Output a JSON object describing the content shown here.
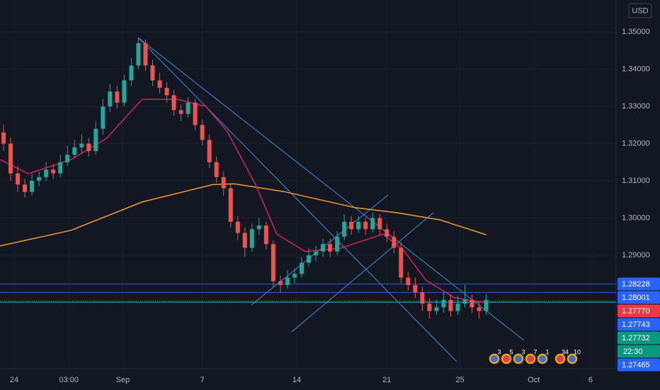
{
  "chart_data": {
    "type": "candlestick",
    "currency": "USD",
    "up_color": "#26a69a",
    "down_color": "#ef5350",
    "ylim": [
      1.2595,
      1.3586
    ],
    "yticks": [
      {
        "value": 1.29,
        "label": "1.29000"
      },
      {
        "value": 1.3,
        "label": "1.30000"
      },
      {
        "value": 1.31,
        "label": "1.31000"
      },
      {
        "value": 1.32,
        "label": "1.32000"
      },
      {
        "value": 1.33,
        "label": "1.33000"
      },
      {
        "value": 1.34,
        "label": "1.34000"
      },
      {
        "value": 1.35,
        "label": "1.35000"
      }
    ],
    "xlim": [
      -0.5,
      86.3
    ],
    "xticks": [
      {
        "value": 1.5,
        "label": "24"
      },
      {
        "value": 9.2,
        "label": "03:00"
      },
      {
        "value": 16.8,
        "label": "Sep"
      },
      {
        "value": 28,
        "label": "7"
      },
      {
        "value": 41.3,
        "label": "14"
      },
      {
        "value": 54,
        "label": "21"
      },
      {
        "value": 64.3,
        "label": "25"
      },
      {
        "value": 74.7,
        "label": "Oct"
      },
      {
        "value": 82.7,
        "label": "6"
      }
    ],
    "grid": true,
    "open": [
      1.323,
      1.32,
      1.312,
      1.309,
      1.307,
      1.31,
      1.311,
      1.313,
      1.312,
      1.315,
      1.317,
      1.319,
      1.32,
      1.318,
      1.324,
      1.33,
      1.334,
      1.331,
      1.337,
      1.341,
      1.347,
      1.341,
      1.337,
      1.335,
      1.333,
      1.329,
      1.328,
      1.331,
      1.325,
      1.321,
      1.315,
      1.311,
      1.308,
      1.299,
      1.296,
      1.292,
      1.297,
      1.298,
      1.293,
      1.283,
      1.282,
      1.284,
      1.285,
      1.288,
      1.29,
      1.291,
      1.293,
      1.291,
      1.295,
      1.299,
      1.297,
      1.299,
      1.297,
      1.3,
      1.297,
      1.295,
      1.292,
      1.284,
      1.282,
      1.28,
      1.277,
      1.275,
      1.276,
      1.278,
      1.275,
      1.277,
      1.278,
      1.276,
      1.275
    ],
    "close": [
      1.32,
      1.312,
      1.309,
      1.307,
      1.31,
      1.311,
      1.313,
      1.312,
      1.315,
      1.317,
      1.319,
      1.32,
      1.318,
      1.324,
      1.33,
      1.334,
      1.331,
      1.337,
      1.341,
      1.347,
      1.341,
      1.337,
      1.335,
      1.333,
      1.329,
      1.328,
      1.331,
      1.325,
      1.321,
      1.315,
      1.311,
      1.308,
      1.299,
      1.296,
      1.292,
      1.297,
      1.298,
      1.293,
      1.283,
      1.282,
      1.284,
      1.285,
      1.288,
      1.29,
      1.291,
      1.293,
      1.291,
      1.295,
      1.299,
      1.297,
      1.299,
      1.297,
      1.3,
      1.297,
      1.295,
      1.292,
      1.284,
      1.282,
      1.28,
      1.277,
      1.275,
      1.276,
      1.278,
      1.275,
      1.277,
      1.278,
      1.276,
      1.275,
      1.278
    ],
    "high": [
      1.325,
      1.3215,
      1.314,
      1.3105,
      1.312,
      1.3125,
      1.315,
      1.3145,
      1.317,
      1.3195,
      1.321,
      1.3225,
      1.3215,
      1.326,
      1.332,
      1.336,
      1.3355,
      1.3385,
      1.343,
      1.3485,
      1.348,
      1.3425,
      1.339,
      1.3365,
      1.3345,
      1.3305,
      1.3325,
      1.332,
      1.3265,
      1.3225,
      1.3165,
      1.3125,
      1.309,
      1.3005,
      1.2975,
      1.2985,
      1.3,
      1.299,
      1.294,
      1.2845,
      1.286,
      1.2865,
      1.2895,
      1.292,
      1.2925,
      1.2945,
      1.2945,
      1.2965,
      1.301,
      1.3005,
      1.3005,
      1.3,
      1.3015,
      1.301,
      1.2985,
      1.2965,
      1.2935,
      1.2855,
      1.284,
      1.2815,
      1.2785,
      1.278,
      1.28,
      1.2795,
      1.279,
      1.282,
      1.2795,
      1.2775,
      1.2795
    ],
    "low": [
      1.318,
      1.31,
      1.307,
      1.3055,
      1.306,
      1.3085,
      1.31,
      1.3105,
      1.311,
      1.314,
      1.316,
      1.3175,
      1.3165,
      1.317,
      1.3225,
      1.3285,
      1.3295,
      1.33,
      1.3355,
      1.34,
      1.3395,
      1.3355,
      1.3335,
      1.331,
      1.3275,
      1.326,
      1.327,
      1.3235,
      1.3195,
      1.3135,
      1.3095,
      1.306,
      1.2975,
      1.294,
      1.2895,
      1.291,
      1.2955,
      1.2915,
      1.2815,
      1.28,
      1.281,
      1.2825,
      1.284,
      1.287,
      1.2885,
      1.2895,
      1.2895,
      1.29,
      1.294,
      1.2955,
      1.296,
      1.2955,
      1.296,
      1.2955,
      1.2935,
      1.2905,
      1.2825,
      1.2805,
      1.2785,
      1.275,
      1.273,
      1.274,
      1.2745,
      1.2735,
      1.274,
      1.276,
      1.2745,
      1.273,
      1.274
    ],
    "series": [
      {
        "color": "#f59b2b",
        "x": [
          -0.5,
          9.5,
          19.5,
          29.5,
          32.5,
          39.5,
          49.5,
          55.5,
          61.5,
          68
        ],
        "values": [
          1.2925,
          1.2967,
          1.3043,
          1.309,
          1.3092,
          1.3071,
          1.3028,
          1.3014,
          1.2995,
          1.2955
        ]
      },
      {
        "color": "#d5245a",
        "x": [
          -0.5,
          3.5,
          9.5,
          14.5,
          19.5,
          24.5,
          28.5,
          31.5,
          35.5,
          38.5,
          42.5,
          47.5,
          53.5,
          56.5,
          59.5,
          63.5,
          68
        ],
        "values": [
          1.3157,
          1.3119,
          1.3157,
          1.3214,
          1.3319,
          1.3319,
          1.33,
          1.3233,
          1.309,
          1.2957,
          1.291,
          1.2919,
          1.2957,
          1.291,
          1.2833,
          1.2786,
          1.2772
        ]
      }
    ],
    "price_lines": [
      {
        "value": 1.28228,
        "label": "1.28228",
        "color": "#2962ff"
      },
      {
        "value": 1.28001,
        "label": "1.28001",
        "color": "#2962ff"
      },
      {
        "value": 1.2777,
        "label": "1.27770",
        "color": "#f23645"
      },
      {
        "value": 1.27743,
        "label": "1.27743",
        "color": "#2962ff"
      },
      {
        "value": 1.27732,
        "label": "1.27732",
        "color": "#089981"
      }
    ],
    "countdown": "22:30",
    "countdown_color": "#089981",
    "extra_price": {
      "value": 1.27465,
      "label": "1.27465",
      "color": "#2962ff"
    },
    "events": [
      "3",
      "5",
      "3",
      "7",
      "1",
      "34",
      "10"
    ]
  }
}
